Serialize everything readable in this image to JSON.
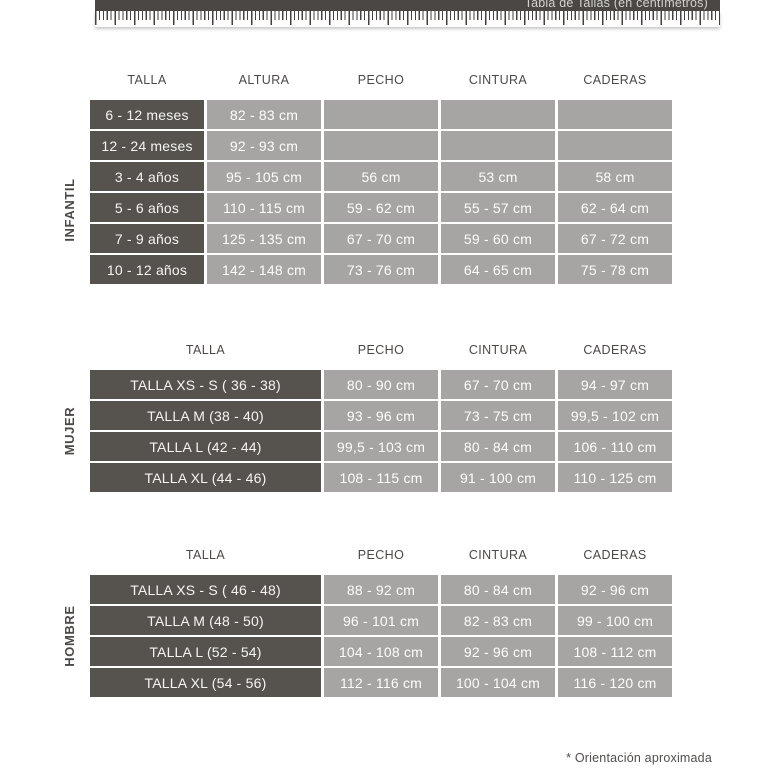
{
  "page": {
    "title": "Tabla de Tallas (en centímetros)",
    "footnote": "* Orientación aproximada"
  },
  "colors": {
    "bar_dark": "#4a4745",
    "cell_dark": "#56534f",
    "cell_light": "#a7a5a3",
    "header_text": "#4b4947",
    "cell_text": "#f5f4f2"
  },
  "sections": [
    {
      "label": "INFANTIL",
      "headers": [
        "TALLA",
        "ALTURA",
        "PECHO",
        "CINTURA",
        "CADERAS"
      ],
      "rows": [
        {
          "talla": "6 - 12 meses",
          "values": [
            "82 - 83 cm",
            "",
            "",
            ""
          ]
        },
        {
          "talla": "12 - 24 meses",
          "values": [
            "92 - 93 cm",
            "",
            "",
            ""
          ]
        },
        {
          "talla": "3 - 4 años",
          "values": [
            "95 - 105 cm",
            "56 cm",
            "53 cm",
            "58 cm"
          ]
        },
        {
          "talla": "5 - 6 años",
          "values": [
            "110 - 115 cm",
            "59 - 62 cm",
            "55 - 57 cm",
            "62 - 64 cm"
          ]
        },
        {
          "talla": "7 - 9 años",
          "values": [
            "125 - 135 cm",
            "67 - 70 cm",
            "59 - 60 cm",
            "67 - 72 cm"
          ]
        },
        {
          "talla": "10 - 12 años",
          "values": [
            "142 - 148 cm",
            "73 - 76 cm",
            "64 - 65 cm",
            "75 - 78 cm"
          ]
        }
      ]
    },
    {
      "label": "MUJER",
      "headers": [
        "TALLA",
        "PECHO",
        "CINTURA",
        "CADERAS"
      ],
      "rows": [
        {
          "talla": "TALLA XS - S ( 36 - 38)",
          "values": [
            "80 - 90 cm",
            "67 - 70 cm",
            "94 - 97 cm"
          ]
        },
        {
          "talla": "TALLA M (38 - 40)",
          "values": [
            "93 - 96 cm",
            "73 - 75 cm",
            "99,5 - 102 cm"
          ]
        },
        {
          "talla": "TALLA L (42 - 44)",
          "values": [
            "99,5 - 103 cm",
            "80 - 84 cm",
            "106 - 110 cm"
          ]
        },
        {
          "talla": "TALLA XL (44 - 46)",
          "values": [
            "108 - 115 cm",
            "91 - 100 cm",
            "110 - 125 cm"
          ]
        }
      ]
    },
    {
      "label": "HOMBRE",
      "headers": [
        "TALLA",
        "PECHO",
        "CINTURA",
        "CADERAS"
      ],
      "rows": [
        {
          "talla": "TALLA XS - S ( 46 - 48)",
          "values": [
            "88 - 92 cm",
            "80 - 84 cm",
            "92 - 96 cm"
          ]
        },
        {
          "talla": "TALLA M (48 - 50)",
          "values": [
            "96 - 101 cm",
            "82 - 83 cm",
            "99 - 100 cm"
          ]
        },
        {
          "talla": "TALLA L (52 - 54)",
          "values": [
            "104 - 108 cm",
            "92 - 96 cm",
            "108 - 112 cm"
          ]
        },
        {
          "talla": "TALLA XL (54 - 56)",
          "values": [
            "112 - 116 cm",
            "100 - 104 cm",
            "116 - 120 cm"
          ]
        }
      ]
    }
  ]
}
